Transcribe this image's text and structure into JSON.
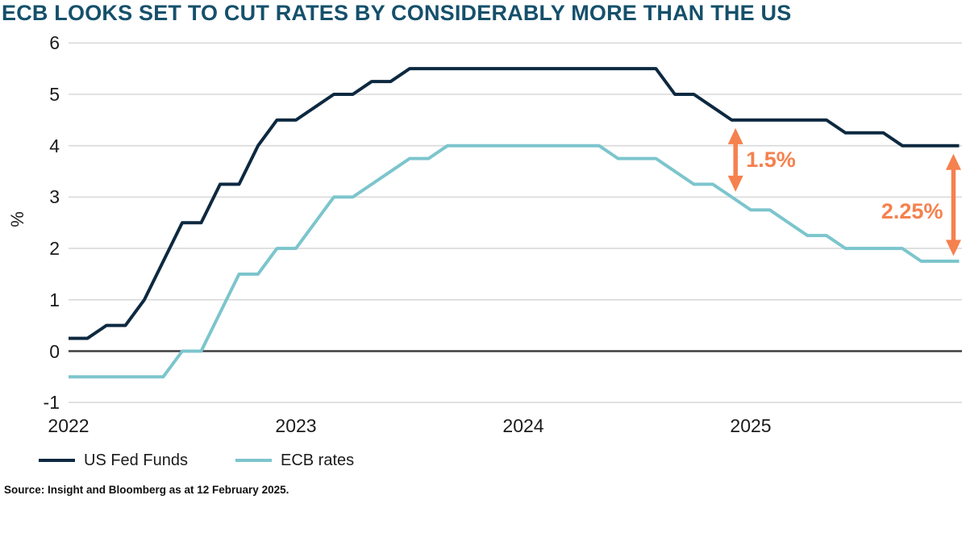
{
  "chart_data": {
    "type": "line",
    "title": "ECB LOOKS SET TO CUT RATES BY CONSIDERABLY MORE THAN THE US",
    "ylabel": "%",
    "ylim": [
      -1,
      6
    ],
    "y_ticks": [
      6,
      5,
      4,
      3,
      2,
      1,
      0,
      -1
    ],
    "grid": "horizontal-only",
    "zero_line": true,
    "x_start": "2022-01",
    "x_end": "2025-12",
    "x_ticks": [
      {
        "label": "2022",
        "month": 0
      },
      {
        "label": "2023",
        "month": 12
      },
      {
        "label": "2024",
        "month": 24
      },
      {
        "label": "2025",
        "month": 36
      }
    ],
    "legend_position": "bottom-left",
    "series": [
      {
        "name": "US Fed Funds",
        "color": "#0d2940",
        "values": [
          0.25,
          0.25,
          0.5,
          0.5,
          1.0,
          1.75,
          2.5,
          2.5,
          3.25,
          3.25,
          4.0,
          4.5,
          4.5,
          4.75,
          5.0,
          5.0,
          5.25,
          5.25,
          5.5,
          5.5,
          5.5,
          5.5,
          5.5,
          5.5,
          5.5,
          5.5,
          5.5,
          5.5,
          5.5,
          5.5,
          5.5,
          5.5,
          5.0,
          5.0,
          4.75,
          4.5,
          4.5,
          4.5,
          4.5,
          4.5,
          4.5,
          4.25,
          4.25,
          4.25,
          4.0,
          4.0,
          4.0,
          4.0
        ]
      },
      {
        "name": "ECB rates",
        "color": "#7cc5cd",
        "values": [
          -0.5,
          -0.5,
          -0.5,
          -0.5,
          -0.5,
          -0.5,
          0.0,
          0.0,
          0.75,
          1.5,
          1.5,
          2.0,
          2.0,
          2.5,
          3.0,
          3.0,
          3.25,
          3.5,
          3.75,
          3.75,
          4.0,
          4.0,
          4.0,
          4.0,
          4.0,
          4.0,
          4.0,
          4.0,
          4.0,
          3.75,
          3.75,
          3.75,
          3.5,
          3.25,
          3.25,
          3.0,
          2.75,
          2.75,
          2.5,
          2.25,
          2.25,
          2.0,
          2.0,
          2.0,
          2.0,
          1.75,
          1.75,
          1.75
        ]
      }
    ],
    "annotations": [
      {
        "label": "1.5%",
        "month": 35.2,
        "from_value": 4.5,
        "to_value": 3.0,
        "label_side": "right",
        "label_dy": 0
      },
      {
        "label": "2.25%",
        "month": 46.7,
        "from_value": 4.0,
        "to_value": 1.75,
        "label_side": "left",
        "label_dy": 8
      }
    ],
    "annotation_color": "#f5814e"
  },
  "source": {
    "text": "Source: Insight and Bloomberg as at 12 February 2025."
  },
  "colors": {
    "title": "#15506b",
    "axis_text": "#1b1b1b",
    "grid": "#d9d9d9",
    "zero_line": "#3f3f3f",
    "background": "#ffffff"
  }
}
